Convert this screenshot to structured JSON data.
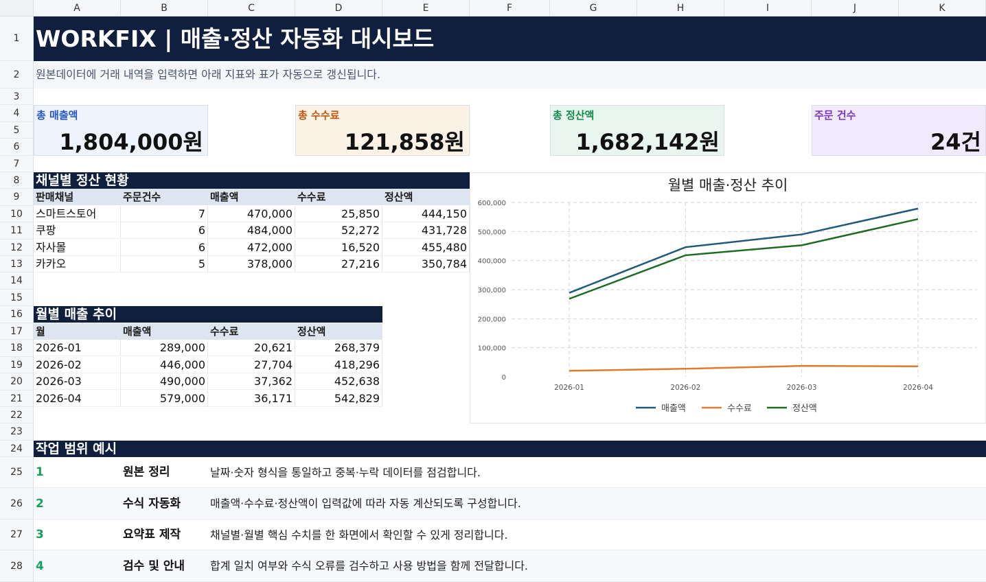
{
  "columns": [
    "A",
    "B",
    "C",
    "D",
    "E",
    "F",
    "G",
    "H",
    "I",
    "J",
    "K"
  ],
  "rows": [
    "1",
    "2",
    "3",
    "4",
    "5",
    "6",
    "7",
    "8",
    "9",
    "10",
    "11",
    "12",
    "13",
    "14",
    "15",
    "16",
    "17",
    "18",
    "19",
    "20",
    "21",
    "22",
    "23",
    "24",
    "25",
    "26",
    "27",
    "28"
  ],
  "title": "WORKFIX | 매출·정산 자동화 대시보드",
  "subtitle": "원본데이터에 거래 내역을 입력하면 아래 지표와 표가 자동으로 갱신됩니다.",
  "kpis": [
    {
      "label": "총 매출액",
      "value": "1,804,000원",
      "label_color": "#2456c9",
      "bg": "#eef3fc"
    },
    {
      "label": "총 수수료",
      "value": "121,858원",
      "label_color": "#c0570f",
      "bg": "#fdf2e6"
    },
    {
      "label": "총 정산액",
      "value": "1,682,142원",
      "label_color": "#138a4b",
      "bg": "#e8f6ef"
    },
    {
      "label": "주문 건수",
      "value": "24건",
      "label_color": "#7a35c2",
      "bg": "#f1e9fc"
    }
  ],
  "channel_section": {
    "title": "채널별 정산 현황",
    "headers": [
      "판매채널",
      "주문건수",
      "매출액",
      "수수료",
      "정산액"
    ],
    "rows": [
      [
        "스마트스토어",
        "7",
        "470,000",
        "25,850",
        "444,150"
      ],
      [
        "쿠팡",
        "6",
        "484,000",
        "52,272",
        "431,728"
      ],
      [
        "자사몰",
        "6",
        "472,000",
        "16,520",
        "455,480"
      ],
      [
        "카카오",
        "5",
        "378,000",
        "27,216",
        "350,784"
      ]
    ]
  },
  "monthly_section": {
    "title": "월별 매출 추이",
    "headers": [
      "월",
      "매출액",
      "수수료",
      "정산액"
    ],
    "rows": [
      [
        "2026-01",
        "289,000",
        "20,621",
        "268,379"
      ],
      [
        "2026-02",
        "446,000",
        "27,704",
        "418,296"
      ],
      [
        "2026-03",
        "490,000",
        "37,362",
        "452,638"
      ],
      [
        "2026-04",
        "579,000",
        "36,171",
        "542,829"
      ]
    ]
  },
  "chart_data": {
    "type": "line",
    "title": "월별 매출·정산 추이",
    "categories": [
      "2026-01",
      "2026-02",
      "2026-03",
      "2026-04"
    ],
    "series": [
      {
        "name": "매출액",
        "values": [
          289000,
          446000,
          490000,
          579000
        ],
        "color": "#1f5a7a"
      },
      {
        "name": "수수료",
        "values": [
          20621,
          27704,
          37362,
          36171
        ],
        "color": "#e07b2e"
      },
      {
        "name": "정산액",
        "values": [
          268379,
          418296,
          452638,
          542829
        ],
        "color": "#1e6b23"
      }
    ],
    "ylim": [
      0,
      600000
    ],
    "yticks": [
      "0",
      "100,000",
      "200,000",
      "300,000",
      "400,000",
      "500,000",
      "600,000"
    ],
    "grid": true,
    "legend": "bottom"
  },
  "scope_section": {
    "title": "작업 범위 예시",
    "steps": [
      {
        "num": "1",
        "title": "원본 정리",
        "desc": "날짜·숫자 형식을 통일하고 중복·누락 데이터를 점검합니다."
      },
      {
        "num": "2",
        "title": "수식 자동화",
        "desc": "매출액·수수료·정산액이 입력값에 따라 자동 계산되도록 구성합니다."
      },
      {
        "num": "3",
        "title": "요약표 제작",
        "desc": "채널별·월별 핵심 수치를 한 화면에서 확인할 수 있게 정리합니다."
      },
      {
        "num": "4",
        "title": "검수 및 안내",
        "desc": "합계 일치 여부와 수식 오류를 검수하고 사용 방법을 함께 전달합니다."
      }
    ]
  }
}
